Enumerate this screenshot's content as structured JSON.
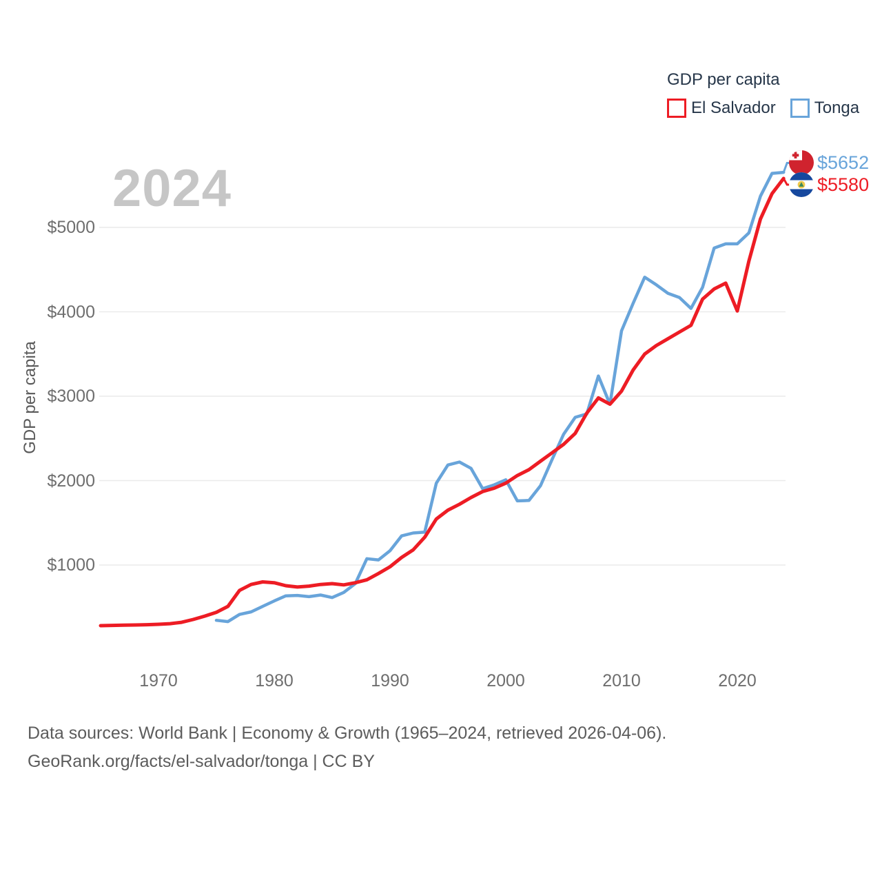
{
  "watermark": {
    "year": "2024"
  },
  "legend": {
    "title": "GDP per capita",
    "items": [
      {
        "label": "El Salvador",
        "color": "#ed1c24"
      },
      {
        "label": "Tonga",
        "color": "#68a4da"
      }
    ]
  },
  "y_axis": {
    "title": "GDP per capita",
    "ticks": [
      {
        "label": "$1000",
        "value": 1000
      },
      {
        "label": "$2000",
        "value": 2000
      },
      {
        "label": "$3000",
        "value": 3000
      },
      {
        "label": "$4000",
        "value": 4000
      },
      {
        "label": "$5000",
        "value": 5000
      }
    ]
  },
  "x_axis": {
    "ticks": [
      {
        "label": "1970",
        "value": 1970
      },
      {
        "label": "1980",
        "value": 1980
      },
      {
        "label": "1990",
        "value": 1990
      },
      {
        "label": "2000",
        "value": 2000
      },
      {
        "label": "2010",
        "value": 2010
      },
      {
        "label": "2020",
        "value": 2020
      }
    ]
  },
  "end_labels": [
    {
      "series": "Tonga",
      "value": "$5652",
      "flag": "tonga-flag",
      "color": "#68a4da"
    },
    {
      "series": "El Salvador",
      "value": "$5580",
      "flag": "el-salvador-flag",
      "color": "#ed1c24"
    }
  ],
  "footer": {
    "line1": "Data sources: World Bank | Economy & Growth (1965–2024, retrieved 2026-04-06).",
    "line2": "GeoRank.org/facts/el-salvador/tonga | CC BY"
  },
  "chart_data": {
    "type": "line",
    "title": "GDP per capita",
    "ylabel": "GDP per capita",
    "xlabel": "",
    "x_range": [
      1965,
      2024
    ],
    "ylim": [
      150,
      5900
    ],
    "grid": "horizontal-only",
    "legend_position": "top-right",
    "x_tick_values": [
      1970,
      1980,
      1990,
      2000,
      2010,
      2020
    ],
    "y_tick_values": [
      1000,
      2000,
      3000,
      4000,
      5000
    ],
    "series": [
      {
        "name": "El Salvador",
        "color": "#ed1c24",
        "start_year": 1965,
        "end_value_label": "$5580",
        "values": [
          282,
          285,
          288,
          290,
          293,
          298,
          305,
          322,
          355,
          395,
          440,
          510,
          700,
          770,
          800,
          790,
          755,
          740,
          750,
          770,
          780,
          765,
          790,
          825,
          900,
          980,
          1090,
          1180,
          1330,
          1545,
          1650,
          1720,
          1800,
          1870,
          1910,
          1970,
          2060,
          2130,
          2230,
          2330,
          2430,
          2560,
          2800,
          2980,
          2905,
          3060,
          3310,
          3500,
          3600,
          3680,
          3760,
          3840,
          4150,
          4270,
          4340,
          4010,
          4600,
          5100,
          5400,
          5580
        ]
      },
      {
        "name": "Tonga",
        "color": "#68a4da",
        "start_year": 1975,
        "end_value_label": "$5652",
        "values": [
          345,
          330,
          415,
          445,
          510,
          575,
          635,
          640,
          625,
          645,
          615,
          675,
          780,
          1075,
          1060,
          1170,
          1345,
          1380,
          1390,
          1970,
          2185,
          2220,
          2145,
          1905,
          1950,
          2010,
          1760,
          1765,
          1940,
          2250,
          2550,
          2750,
          2790,
          3240,
          2905,
          3775,
          4100,
          4410,
          4320,
          4220,
          4170,
          4040,
          4290,
          4755,
          4805,
          4805,
          4935,
          5370,
          5640,
          5652
        ]
      }
    ]
  }
}
